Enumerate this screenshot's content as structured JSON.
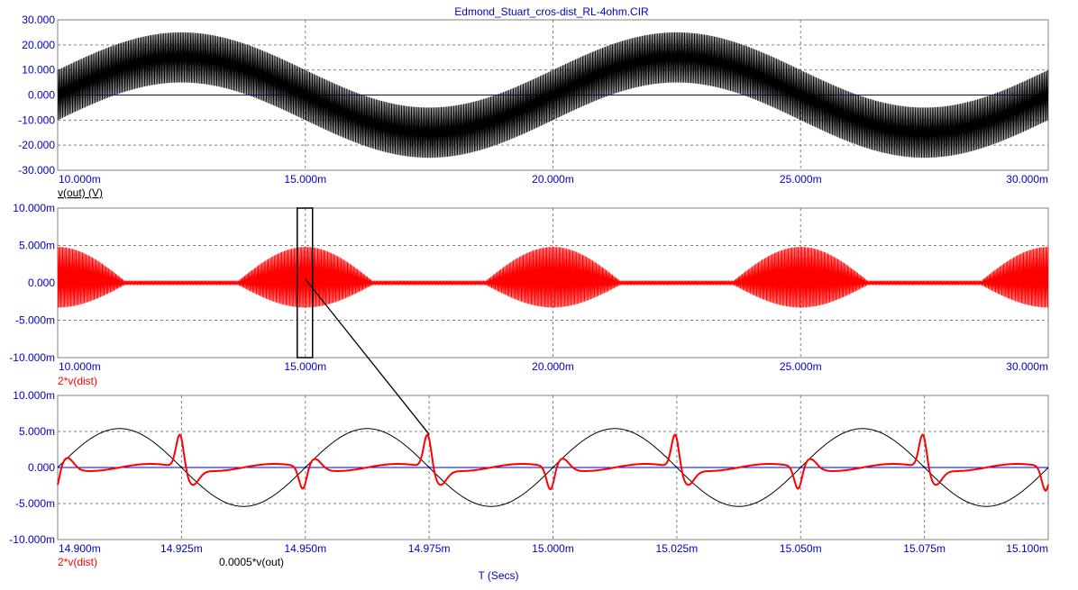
{
  "title": "Edmond_Stuart_cros-dist_RL-4ohm.CIR",
  "colors": {
    "trace_black": "#000000",
    "trace_red": "#ff0000",
    "zero_line": "#0000cc",
    "tick_text": "#0000cc",
    "grid": "#808080",
    "frame": "#808080"
  },
  "x_axis_title": "T (Secs)",
  "chart_data": [
    {
      "type": "line",
      "panel": "top",
      "title": "Edmond_Stuart_cros-dist_RL-4ohm.CIR",
      "xlabel": "",
      "ylabel": "",
      "xlim": [
        10,
        30
      ],
      "ylim": [
        -30,
        30
      ],
      "x_ticks": [
        "10.000m",
        "15.000m",
        "20.000m",
        "25.000m",
        "30.000m"
      ],
      "y_ticks": [
        "30.000",
        "20.000",
        "10.000",
        "0.000",
        "-10.000",
        "-20.000",
        "-30.000"
      ],
      "grid": true,
      "series": [
        {
          "name": "v(out) (V)",
          "color": "#000000",
          "description": "dense HF carrier riding on 100 Hz sine",
          "low_freq_amplitude": 15,
          "hf_amplitude": 10,
          "period_ms": 10,
          "peak_at_ms": 12.5
        }
      ],
      "legend": [
        "v(out) (V)"
      ]
    },
    {
      "type": "line",
      "panel": "middle",
      "xlim": [
        10,
        30
      ],
      "ylim": [
        -10,
        10
      ],
      "x_ticks": [
        "10.000m",
        "15.000m",
        "20.000m",
        "25.000m",
        "30.000m"
      ],
      "y_ticks": [
        "10.000m",
        "5.000m",
        "0.000",
        "-5.000m",
        "-10.000m"
      ],
      "grid": true,
      "series": [
        {
          "name": "2*v(dist)",
          "color": "#ff0000",
          "burst_centers_ms": [
            10,
            15,
            20,
            25,
            30
          ],
          "burst_peak": 4.8,
          "burst_trough": -3.3,
          "baseline_ripple": 0.3
        }
      ],
      "legend": [
        "2*v(dist)"
      ]
    },
    {
      "type": "line",
      "panel": "bottom",
      "xlim": [
        14.9,
        15.1
      ],
      "ylim": [
        -10,
        10
      ],
      "x_ticks": [
        "14.900m",
        "14.925m",
        "14.950m",
        "14.975m",
        "15.000m",
        "15.025m",
        "15.050m",
        "15.075m",
        "15.100m"
      ],
      "y_ticks": [
        "10.000m",
        "5.000m",
        "0.000",
        "-5.000m",
        "-10.000m"
      ],
      "grid": true,
      "series": [
        {
          "name": "2*v(dist)",
          "color": "#ff0000",
          "spike_times_ms": [
            14.8995,
            14.9247,
            14.9495,
            14.9747,
            14.9995,
            15.0247,
            15.0495,
            15.0747,
            15.0995
          ],
          "spike_heights": [
            -3.5,
            4.8,
            -3.2,
            4.8,
            -3.3,
            4.8,
            -3.2,
            4.8,
            -3.5
          ]
        },
        {
          "name": "0.0005*v(out)",
          "color": "#000000",
          "amplitude": 5.4,
          "period_ms": 0.05,
          "peak_at_ms": 14.9125
        }
      ],
      "legend": [
        "2*v(dist)",
        "0.0005*v(out)"
      ]
    }
  ]
}
